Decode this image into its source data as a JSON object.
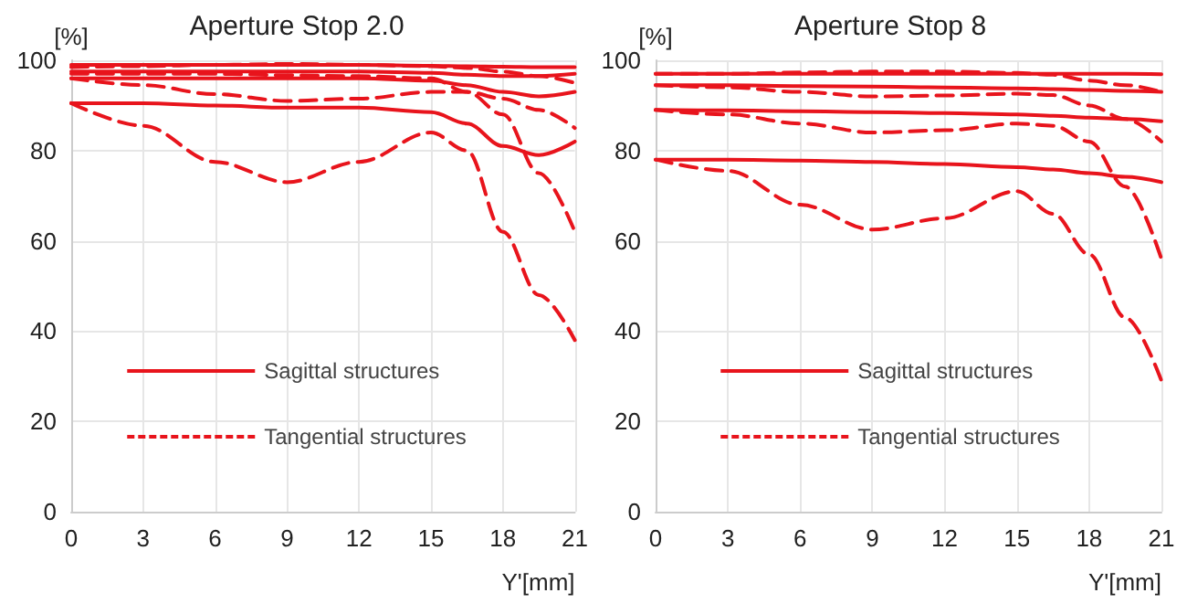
{
  "chart_data": [
    {
      "type": "line",
      "title": "Aperture Stop 2.0",
      "xlabel": "Y'[mm]",
      "ylabel": "[%]",
      "x": [
        0,
        3,
        6,
        9,
        12,
        15,
        16.5,
        18,
        19.5,
        21
      ],
      "xlim": [
        0,
        21
      ],
      "xticks": [
        0,
        3,
        6,
        9,
        12,
        15,
        18,
        21
      ],
      "ylim": [
        0,
        100
      ],
      "yticks": [
        0,
        20,
        40,
        60,
        80,
        100
      ],
      "grid": true,
      "legend": "bottom",
      "marker": "none",
      "series": [
        {
          "name": "Sagittal structures",
          "color": "#e8141c",
          "line_style": "solid",
          "values": [
            99,
            99,
            99,
            99,
            99,
            98.8,
            98.7,
            98.6,
            98.5,
            98.5
          ]
        },
        {
          "color": "#e8141c",
          "line_style": "solid",
          "values": [
            97.5,
            97.5,
            97.5,
            97.5,
            97.5,
            97.2,
            96.8,
            96.5,
            96.5,
            97
          ]
        },
        {
          "color": "#e8141c",
          "line_style": "solid",
          "values": [
            96,
            96,
            96,
            96,
            96,
            95.5,
            94.5,
            93,
            92,
            93
          ]
        },
        {
          "color": "#e8141c",
          "line_style": "solid",
          "values": [
            90.5,
            90.5,
            90,
            89.5,
            89.5,
            88.5,
            86,
            81,
            79,
            82
          ]
        },
        {
          "name": "Tangential structures",
          "color": "#e8141c",
          "line_style": "dashed",
          "values": [
            98.5,
            98.7,
            99,
            99.2,
            99,
            98.7,
            98.3,
            97.5,
            96.5,
            95
          ]
        },
        {
          "color": "#e8141c",
          "line_style": "dashed",
          "values": [
            96,
            94.5,
            92.5,
            91,
            91.5,
            93,
            93,
            91.5,
            89,
            85
          ]
        },
        {
          "color": "#e8141c",
          "line_style": "dashed",
          "values": [
            97,
            97,
            97,
            96.7,
            96.5,
            96,
            93,
            88,
            75,
            62
          ]
        },
        {
          "color": "#e8141c",
          "line_style": "dashed",
          "values": [
            90.5,
            85.5,
            77.5,
            73,
            77.5,
            84,
            80,
            62,
            48,
            38
          ]
        }
      ]
    },
    {
      "type": "line",
      "title": "Aperture Stop 8",
      "xlabel": "Y'[mm]",
      "ylabel": "[%]",
      "x": [
        0,
        3,
        6,
        9,
        12,
        15,
        16.5,
        18,
        19.5,
        21
      ],
      "xlim": [
        0,
        21
      ],
      "xticks": [
        0,
        3,
        6,
        9,
        12,
        15,
        18,
        21
      ],
      "ylim": [
        0,
        100
      ],
      "yticks": [
        0,
        20,
        40,
        60,
        80,
        100
      ],
      "grid": true,
      "legend": "bottom",
      "marker": "none",
      "series": [
        {
          "name": "Sagittal structures",
          "color": "#e8141c",
          "line_style": "solid",
          "values": [
            97,
            97,
            97,
            97,
            97,
            97,
            97,
            97,
            97,
            96.9
          ]
        },
        {
          "color": "#e8141c",
          "line_style": "solid",
          "values": [
            94.5,
            94.5,
            94.3,
            94.2,
            94,
            93.8,
            93.6,
            93.4,
            93.2,
            93
          ]
        },
        {
          "color": "#e8141c",
          "line_style": "solid",
          "values": [
            89,
            88.9,
            88.7,
            88.5,
            88.3,
            88,
            87.7,
            87.3,
            87,
            86.5
          ]
        },
        {
          "color": "#e8141c",
          "line_style": "solid",
          "values": [
            78,
            78,
            77.8,
            77.5,
            77,
            76.3,
            75.8,
            75,
            74.2,
            73
          ]
        },
        {
          "name": "Tangential structures",
          "color": "#e8141c",
          "line_style": "dashed",
          "values": [
            97,
            97,
            97.3,
            97.5,
            97.5,
            97.2,
            96.8,
            95.5,
            94.5,
            93
          ]
        },
        {
          "color": "#e8141c",
          "line_style": "dashed",
          "values": [
            94.5,
            94,
            93,
            92,
            92.2,
            92.6,
            92.3,
            90,
            87,
            82
          ]
        },
        {
          "color": "#e8141c",
          "line_style": "dashed",
          "values": [
            89,
            88,
            86,
            84,
            84.5,
            86,
            85.5,
            82,
            72,
            56
          ]
        },
        {
          "color": "#e8141c",
          "line_style": "dashed",
          "values": [
            78,
            75.5,
            68,
            62.5,
            65,
            71,
            66,
            57,
            43,
            29
          ]
        }
      ]
    }
  ]
}
